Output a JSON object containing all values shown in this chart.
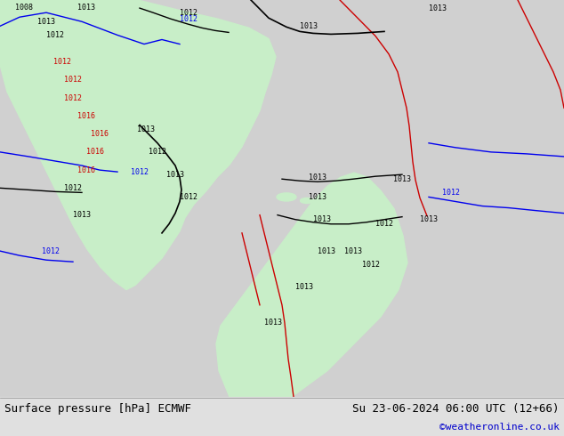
{
  "title_left": "Surface pressure [hPa] ECMWF",
  "title_right": "Su 23-06-2024 06:00 UTC (12+66)",
  "credit": "©weatheronline.co.uk",
  "ocean_color": "#d0d0d0",
  "land_color": "#c8eec8",
  "bottom_bar_color": "#e0e0e0",
  "title_font_size": 9,
  "credit_font_size": 8,
  "credit_color": "#0000cc",
  "figsize": [
    6.34,
    4.9
  ],
  "dpi": 100
}
